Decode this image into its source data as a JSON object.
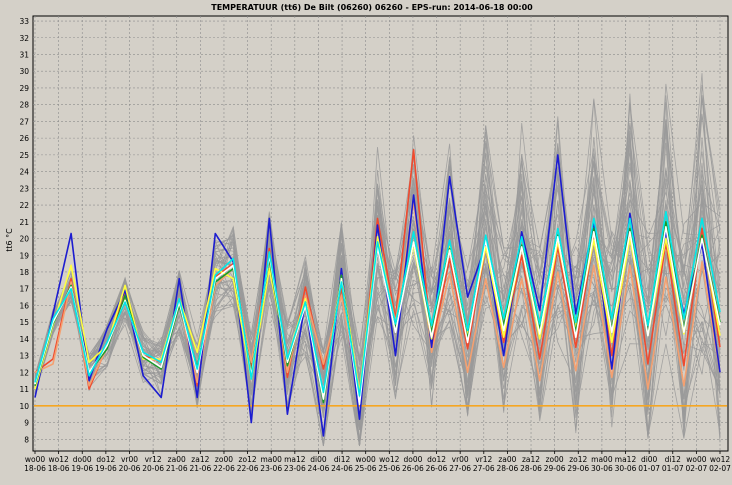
{
  "chart_data": {
    "type": "line",
    "title": "TEMPERATUUR (tt6) De Bilt (06260) 06260 - EPS-run: 2014-06-18 00:00",
    "ylabel": "tt6 °C",
    "xlabel": "",
    "ylim": [
      7.3,
      33.3
    ],
    "yticks": [
      8,
      9,
      10,
      11,
      12,
      13,
      14,
      15,
      16,
      17,
      18,
      19,
      20,
      21,
      22,
      23,
      24,
      25,
      26,
      27,
      28,
      29,
      30,
      31,
      32,
      33
    ],
    "grid": true,
    "x_tick_labels": [
      [
        "wo00",
        "18-06"
      ],
      [
        "wo12",
        "18-06"
      ],
      [
        "do00",
        "19-06"
      ],
      [
        "do12",
        "19-06"
      ],
      [
        "vr00",
        "20-06"
      ],
      [
        "vr12",
        "20-06"
      ],
      [
        "za00",
        "21-06"
      ],
      [
        "za12",
        "21-06"
      ],
      [
        "zo00",
        "22-06"
      ],
      [
        "zo12",
        "22-06"
      ],
      [
        "ma00",
        "23-06"
      ],
      [
        "ma12",
        "23-06"
      ],
      [
        "di00",
        "24-06"
      ],
      [
        "di12",
        "24-06"
      ],
      [
        "wo00",
        "25-06"
      ],
      [
        "wo12",
        "25-06"
      ],
      [
        "do00",
        "26-06"
      ],
      [
        "do12",
        "26-06"
      ],
      [
        "vr00",
        "27-06"
      ],
      [
        "vr12",
        "27-06"
      ],
      [
        "za00",
        "28-06"
      ],
      [
        "za12",
        "28-06"
      ],
      [
        "zo00",
        "29-06"
      ],
      [
        "zo12",
        "29-06"
      ],
      [
        "ma00",
        "30-06"
      ],
      [
        "ma12",
        "30-06"
      ],
      [
        "di00",
        "01-07"
      ],
      [
        "di12",
        "01-07"
      ],
      [
        "wo00",
        "02-07"
      ],
      [
        "wo12",
        "02-07"
      ]
    ],
    "reference_line": {
      "value": 10,
      "color": "#f5a623"
    },
    "colors": {
      "background": "#d4d0c8",
      "ensemble": "#9a9a9a",
      "grid": "#8c8c8c"
    },
    "series": [
      {
        "color": "#f04a2e",
        "values": [
          12,
          12.8,
          17.6,
          11,
          13.6,
          16.7,
          13,
          12.6,
          16.4,
          11.2,
          17.7,
          18.5,
          12.4,
          19.4,
          11.7,
          17.1,
          12.2,
          17.0,
          10.2,
          21.2,
          15.2,
          25.3,
          13.5,
          18.8,
          13.4,
          19.5,
          13.8,
          19.0,
          12.8,
          19.5,
          13.5,
          20.0,
          13.0,
          20.4,
          12.5,
          19.8,
          12.4,
          20.6,
          13.5
        ]
      },
      {
        "color": "#f4a070",
        "values": [
          12,
          12.5,
          17.4,
          11.2,
          13.5,
          16.5,
          12.8,
          12.7,
          16.2,
          11.4,
          17.2,
          18.2,
          12.6,
          18.8,
          12.0,
          16.6,
          12.5,
          16.6,
          10.6,
          20.0,
          15.0,
          22.2,
          13.2,
          17.9,
          12.0,
          17.6,
          12.3,
          17.6,
          11.5,
          18.0,
          12.1,
          18.4,
          11.7,
          18.4,
          11.0,
          17.7,
          11.2,
          18.6,
          12.0
        ]
      },
      {
        "color": "#1c1cd0",
        "values": [
          10.5,
          15.5,
          20.3,
          11.5,
          14.6,
          16.9,
          11.8,
          10.5,
          17.6,
          10.5,
          20.3,
          18.6,
          9.0,
          21.2,
          9.5,
          16.3,
          8.2,
          18.2,
          9.2,
          20.8,
          13.0,
          22.6,
          13.5,
          23.7,
          16.5,
          19.6,
          13.0,
          20.4,
          15.7,
          25.0,
          15.5,
          21.0,
          12.2,
          21.5,
          14.7,
          20.4,
          15.5,
          19.7,
          12.0
        ]
      },
      {
        "color": "#ffff3c",
        "values": [
          11,
          14.8,
          18.4,
          12.6,
          13.6,
          17.2,
          12.8,
          12.8,
          16.4,
          13.2,
          18.2,
          17.6,
          11.6,
          18.2,
          12.8,
          16.4,
          10.6,
          17.8,
          10.8,
          20.1,
          14.8,
          19.6,
          14.0,
          19.5,
          14.2,
          19.5,
          14.1,
          19.5,
          14.0,
          19.8,
          14.6,
          19.9,
          13.8,
          20.0,
          14.2,
          20.0,
          14.3,
          20.2,
          14.2
        ]
      },
      {
        "color": "#1a9a2a",
        "values": [
          11.2,
          14.9,
          17.2,
          12.0,
          13.4,
          16.6,
          12.9,
          12.2,
          16.0,
          12.3,
          17.4,
          18.2,
          12.0,
          18.8,
          12.4,
          16.2,
          10.2,
          17.8,
          10.2,
          19.6,
          14.6,
          19.8,
          14.4,
          19.4,
          14.0,
          20.0,
          14.8,
          19.6,
          14.6,
          20.2,
          14.4,
          20.6,
          14.6,
          20.6,
          14.4,
          21.0,
          14.6,
          20.2,
          15.0
        ]
      },
      {
        "color": "#ffffff",
        "values": [
          11.3,
          15.0,
          17.1,
          12.0,
          13.6,
          16.3,
          13.0,
          12.3,
          16.2,
          12.0,
          17.6,
          18.4,
          11.8,
          19.0,
          12.6,
          16.0,
          10.4,
          17.6,
          10.1,
          19.5,
          14.4,
          19.8,
          14.1,
          19.3,
          13.8,
          19.9,
          14.5,
          19.5,
          14.3,
          20.1,
          14.1,
          20.4,
          14.4,
          20.4,
          14.2,
          20.7,
          14.4,
          20.0,
          14.8
        ]
      },
      {
        "color": "#00e8e8",
        "values": [
          11.4,
          15.2,
          17.0,
          11.8,
          13.8,
          16.2,
          13.2,
          12.6,
          16.4,
          12.2,
          17.8,
          18.8,
          11.6,
          19.2,
          12.8,
          16.2,
          10.8,
          17.4,
          10.6,
          19.8,
          14.9,
          20.4,
          14.8,
          19.9,
          14.5,
          20.2,
          15.2,
          20.1,
          14.9,
          20.6,
          15.0,
          21.2,
          15.2,
          21.2,
          14.8,
          21.6,
          15.2,
          21.2,
          15.6
        ]
      }
    ]
  }
}
